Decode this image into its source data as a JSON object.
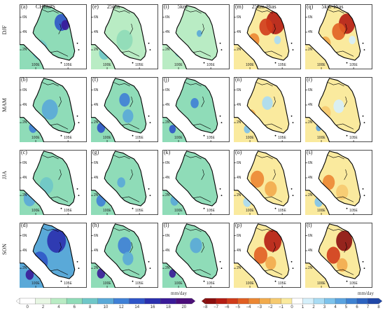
{
  "seasons": [
    "DJF",
    "MAM",
    "JJA",
    "SON"
  ],
  "columns": [
    "CHIRPS",
    "25km",
    "5km",
    "25km-Bias",
    "5km-Bias"
  ],
  "panel_letters": [
    [
      "(a)",
      "(e)",
      "(i)",
      "(m)",
      "(q)"
    ],
    [
      "(b)",
      "(f)",
      "(j)",
      "(n)",
      "(r)"
    ],
    [
      "(c)",
      "(g)",
      "(k)",
      "(o)",
      "(s)"
    ],
    [
      "(d)",
      "(h)",
      "(l)",
      "(p)",
      "(t)"
    ]
  ],
  "axis": {
    "lat_ticks": [
      "6N",
      "4N",
      "2N"
    ],
    "lon_ticks": [
      "100E",
      "105E"
    ]
  },
  "colorbar_precip": {
    "unit": "mm/day",
    "ticks": [
      "0",
      "2",
      "4",
      "6",
      "8",
      "10",
      "12",
      "14",
      "16",
      "18",
      "20"
    ],
    "colors": [
      "#ffffff",
      "#e8f7e4",
      "#b9ecc4",
      "#8fdcb8",
      "#6fc7c8",
      "#5aa9d8",
      "#3f80d6",
      "#2f55c8",
      "#2a2fae",
      "#3a1a98",
      "#4b0d7a"
    ]
  },
  "colorbar_bias": {
    "unit": "mm/day",
    "ticks": [
      "−8",
      "−7",
      "−6",
      "−5",
      "−4",
      "−3",
      "−2",
      "−1",
      "0",
      "1",
      "2",
      "3",
      "4",
      "5",
      "6",
      "7",
      "8"
    ],
    "colors": [
      "#8b0e0e",
      "#b51c12",
      "#d03b1a",
      "#e15f22",
      "#ec8733",
      "#f2ab4c",
      "#f6ca6f",
      "#faea9e",
      "#ffffff",
      "#d6f0fb",
      "#a9dcf4",
      "#7dc3ec",
      "#5aa3e0",
      "#3e82d2",
      "#2c63c0",
      "#1f47a8"
    ]
  },
  "panel_fills": [
    [
      {
        "base": "#8fdcb8",
        "spots": [
          [
            "#2f55c8",
            0.62,
            0.28,
            0.1
          ],
          [
            "#3a1a98",
            0.68,
            0.32,
            0.06
          ],
          [
            "#6fc7c8",
            0.3,
            0.7,
            0.12
          ]
        ]
      },
      {
        "base": "#b9ecc4",
        "spots": [
          [
            "#8fdcb8",
            0.5,
            0.55,
            0.12
          ],
          [
            "#6fc7c8",
            0.2,
            0.75,
            0.08
          ]
        ]
      },
      {
        "base": "#b9ecc4",
        "spots": [
          [
            "#5aa9d8",
            0.55,
            0.45,
            0.04
          ],
          [
            "#6fc7c8",
            0.25,
            0.72,
            0.07
          ]
        ]
      },
      {
        "base": "#faea9e",
        "spots": [
          [
            "#b51c12",
            0.62,
            0.28,
            0.14
          ],
          [
            "#d03b1a",
            0.48,
            0.35,
            0.1
          ],
          [
            "#ec8733",
            0.3,
            0.55,
            0.08
          ],
          [
            "#a9dcf4",
            0.65,
            0.55,
            0.05
          ]
        ]
      },
      {
        "base": "#faea9e",
        "spots": [
          [
            "#b51c12",
            0.62,
            0.3,
            0.12
          ],
          [
            "#e15f22",
            0.5,
            0.42,
            0.1
          ],
          [
            "#f2ab4c",
            0.3,
            0.6,
            0.08
          ],
          [
            "#d6f0fb",
            0.7,
            0.55,
            0.05
          ]
        ]
      }
    ],
    [
      {
        "base": "#8fdcb8",
        "spots": [
          [
            "#5aa9d8",
            0.45,
            0.5,
            0.12
          ],
          [
            "#3f80d6",
            0.2,
            0.78,
            0.06
          ]
        ]
      },
      {
        "base": "#8fdcb8",
        "spots": [
          [
            "#3f80d6",
            0.5,
            0.35,
            0.08
          ],
          [
            "#2f55c8",
            0.15,
            0.78,
            0.06
          ],
          [
            "#5aa9d8",
            0.55,
            0.6,
            0.08
          ]
        ]
      },
      {
        "base": "#8fdcb8",
        "spots": [
          [
            "#3f80d6",
            0.48,
            0.4,
            0.06
          ],
          [
            "#2f55c8",
            0.15,
            0.8,
            0.05
          ]
        ]
      },
      {
        "base": "#faea9e",
        "spots": [
          [
            "#a9dcf4",
            0.5,
            0.4,
            0.08
          ],
          [
            "#f2ab4c",
            0.25,
            0.6,
            0.08
          ],
          [
            "#7dc3ec",
            0.2,
            0.8,
            0.05
          ]
        ]
      },
      {
        "base": "#faea9e",
        "spots": [
          [
            "#d6f0fb",
            0.5,
            0.45,
            0.08
          ],
          [
            "#f6ca6f",
            0.3,
            0.55,
            0.08
          ],
          [
            "#5aa3e0",
            0.2,
            0.78,
            0.04
          ]
        ]
      }
    ],
    [
      {
        "base": "#8fdcb8",
        "spots": [
          [
            "#5aa9d8",
            0.15,
            0.75,
            0.09
          ],
          [
            "#6fc7c8",
            0.4,
            0.55,
            0.1
          ]
        ]
      },
      {
        "base": "#8fdcb8",
        "spots": [
          [
            "#3f80d6",
            0.15,
            0.78,
            0.07
          ],
          [
            "#5aa9d8",
            0.45,
            0.5,
            0.06
          ]
        ]
      },
      {
        "base": "#8fdcb8",
        "spots": [
          [
            "#5aa9d8",
            0.18,
            0.78,
            0.06
          ]
        ]
      },
      {
        "base": "#faea9e",
        "spots": [
          [
            "#ec8733",
            0.35,
            0.45,
            0.1
          ],
          [
            "#f2ab4c",
            0.55,
            0.6,
            0.09
          ],
          [
            "#a9dcf4",
            0.2,
            0.8,
            0.06
          ]
        ]
      },
      {
        "base": "#faea9e",
        "spots": [
          [
            "#ec8733",
            0.35,
            0.5,
            0.09
          ],
          [
            "#f6ca6f",
            0.55,
            0.65,
            0.09
          ],
          [
            "#7dc3ec",
            0.2,
            0.8,
            0.06
          ]
        ]
      }
    ],
    [
      {
        "base": "#5aa9d8",
        "spots": [
          [
            "#2a2fae",
            0.55,
            0.28,
            0.14
          ],
          [
            "#2f55c8",
            0.3,
            0.6,
            0.12
          ],
          [
            "#3a1a98",
            0.15,
            0.8,
            0.06
          ]
        ]
      },
      {
        "base": "#8fdcb8",
        "spots": [
          [
            "#3f80d6",
            0.5,
            0.35,
            0.1
          ],
          [
            "#3a1a98",
            0.15,
            0.78,
            0.06
          ],
          [
            "#5aa9d8",
            0.55,
            0.55,
            0.08
          ]
        ]
      },
      {
        "base": "#8fdcb8",
        "spots": [
          [
            "#5aa9d8",
            0.5,
            0.35,
            0.09
          ],
          [
            "#3a1a98",
            0.15,
            0.78,
            0.05
          ]
        ]
      },
      {
        "base": "#faea9e",
        "spots": [
          [
            "#b51c12",
            0.58,
            0.28,
            0.13
          ],
          [
            "#e15f22",
            0.4,
            0.5,
            0.1
          ],
          [
            "#f2ab4c",
            0.55,
            0.62,
            0.08
          ]
        ]
      },
      {
        "base": "#faea9e",
        "spots": [
          [
            "#8b0e0e",
            0.58,
            0.28,
            0.12
          ],
          [
            "#d03b1a",
            0.42,
            0.5,
            0.1
          ],
          [
            "#f2ab4c",
            0.55,
            0.65,
            0.08
          ]
        ]
      }
    ]
  ]
}
